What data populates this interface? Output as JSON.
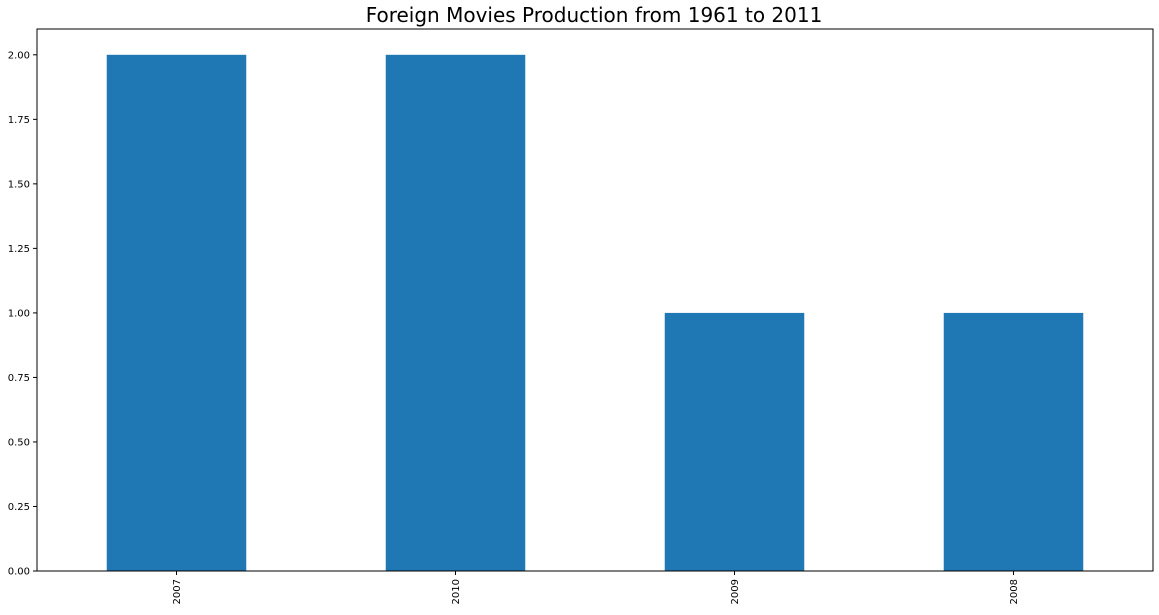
{
  "chart_data": {
    "type": "bar",
    "title": "Foreign Movies Production from 1961 to 2011",
    "xlabel": "",
    "ylabel": "",
    "categories": [
      "2007",
      "2010",
      "2009",
      "2008"
    ],
    "values": [
      2,
      2,
      1,
      1
    ],
    "ylim": [
      0,
      2.1
    ],
    "yticks": [
      "0.00",
      "0.25",
      "0.50",
      "0.75",
      "1.00",
      "1.25",
      "1.50",
      "1.75",
      "2.00"
    ],
    "grid": false,
    "legend": "none",
    "bar_color": "#1f77b4",
    "axis_color": "#000000",
    "background_color": "#ffffff"
  }
}
